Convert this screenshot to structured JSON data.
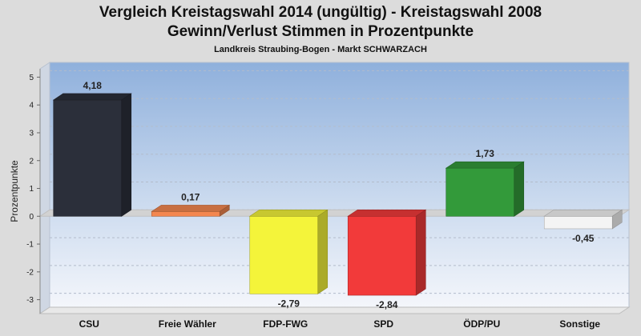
{
  "header": {
    "title_line1": "Vergleich Kreistagswahl 2014 (ungültig) - Kreistagswahl 2008",
    "title_line2": "Gewinn/Verlust Stimmen in Prozentpunkte",
    "subtitle": "Landkreis Straubing-Bogen - Markt SCHWARZACH"
  },
  "chart_data": {
    "type": "bar",
    "title": "Vergleich Kreistagswahl 2014 (ungültig) - Kreistagswahl 2008",
    "subtitle": "Gewinn/Verlust Stimmen in Prozentpunkte",
    "ylabel": "Prozentpunkte",
    "xlabel": "",
    "ylim": [
      -3.5,
      5.3
    ],
    "yticks": [
      5,
      4,
      3,
      2,
      1,
      0,
      -1,
      -2,
      -3
    ],
    "grid": true,
    "categories": [
      "CSU",
      "Freie Wähler",
      "FDP-FWG",
      "SPD",
      "ÖDP/PU",
      "Sonstige"
    ],
    "values": [
      4.18,
      0.17,
      -2.79,
      -2.84,
      1.73,
      -0.45
    ],
    "value_labels": [
      "4,18",
      "0,17",
      "-2,79",
      "-2,84",
      "1,73",
      "-0,45"
    ],
    "colors": [
      "#2b2f3a",
      "#f4874f",
      "#f4f43a",
      "#f23a3a",
      "#339a3a",
      "#f4f4f4"
    ]
  }
}
